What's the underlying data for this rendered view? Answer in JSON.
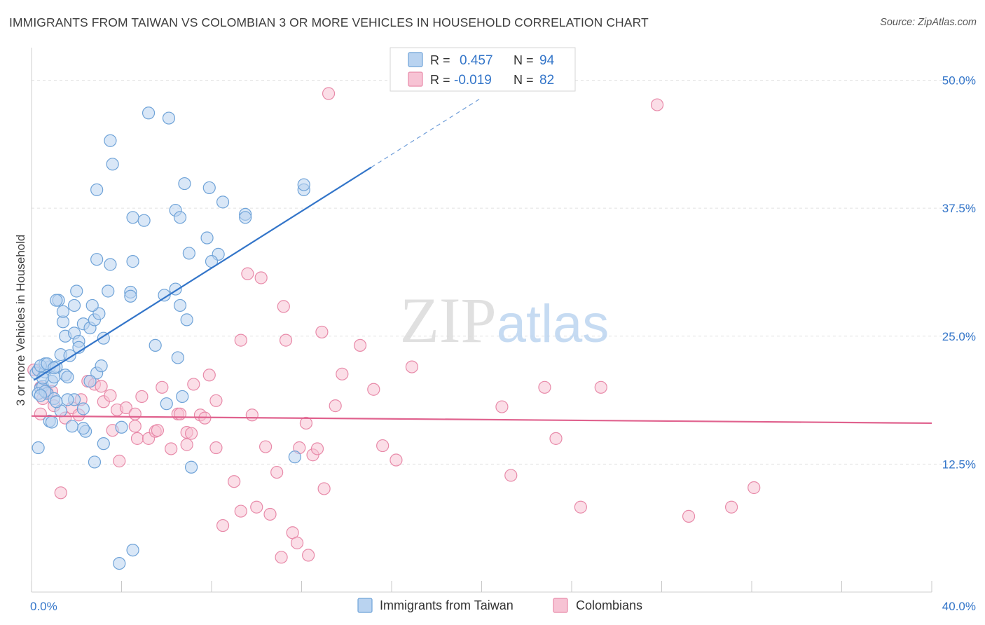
{
  "chart_data": {
    "type": "scatter",
    "title": "IMMIGRANTS FROM TAIWAN VS COLOMBIAN 3 OR MORE VEHICLES IN HOUSEHOLD CORRELATION CHART",
    "source": "Source: ZipAtlas.com",
    "ylabel": "3 or more Vehicles in Household",
    "xlabel": "",
    "xlim": [
      0,
      40
    ],
    "ylim": [
      0,
      52.5
    ],
    "x_tick_labels": [
      "0.0%",
      "40.0%"
    ],
    "y_ticks": [
      12.5,
      25.0,
      37.5,
      50.0
    ],
    "y_tick_labels": [
      "12.5%",
      "25.0%",
      "37.5%",
      "50.0%"
    ],
    "grid": true,
    "watermark": "ZIPatlas",
    "legend": {
      "position": "top-center",
      "rows": [
        {
          "r_label": "R =",
          "r_value": "0.457",
          "n_label": "N =",
          "n_value": "94"
        },
        {
          "r_label": "R =",
          "r_value": "-0.019",
          "n_label": "N =",
          "n_value": "82"
        }
      ]
    },
    "series": [
      {
        "name": "Immigrants from Taiwan",
        "color": "#6fa3d8",
        "fill": "#b9d3f0",
        "trend_color": "#3375c9",
        "trend": {
          "x0": 0.1,
          "y0": 20.7,
          "x1": 15.1,
          "y1": 41.5,
          "dash_to_x": 20.0
        },
        "points": [
          [
            0.2,
            21.4
          ],
          [
            0.3,
            21.7
          ],
          [
            0.4,
            19.9
          ],
          [
            0.5,
            20.1
          ],
          [
            0.6,
            21.5
          ],
          [
            0.7,
            19.4
          ],
          [
            0.8,
            16.7
          ],
          [
            0.9,
            20.6
          ],
          [
            0.8,
            22.0
          ],
          [
            0.6,
            22.3
          ],
          [
            0.3,
            19.4
          ],
          [
            0.4,
            22.1
          ],
          [
            0.5,
            20.9
          ],
          [
            0.7,
            22.3
          ],
          [
            1.0,
            21.0
          ],
          [
            1.1,
            22.0
          ],
          [
            1.2,
            28.5
          ],
          [
            1.3,
            23.2
          ],
          [
            1.4,
            26.4
          ],
          [
            1.5,
            25.0
          ],
          [
            1.4,
            27.4
          ],
          [
            1.7,
            23.1
          ],
          [
            1.9,
            25.3
          ],
          [
            2.1,
            24.5
          ],
          [
            2.3,
            26.2
          ],
          [
            2.6,
            25.8
          ],
          [
            2.8,
            26.6
          ],
          [
            3.0,
            27.2
          ],
          [
            3.2,
            24.8
          ],
          [
            3.5,
            32.0
          ],
          [
            4.4,
            29.3
          ],
          [
            4.5,
            32.3
          ],
          [
            2.9,
            32.5
          ],
          [
            2.0,
            29.4
          ],
          [
            2.7,
            28.0
          ],
          [
            1.9,
            28.0
          ],
          [
            3.4,
            29.4
          ],
          [
            1.1,
            28.5
          ],
          [
            4.4,
            28.9
          ],
          [
            5.5,
            24.1
          ],
          [
            5.9,
            29.0
          ],
          [
            6.4,
            29.6
          ],
          [
            6.6,
            28.0
          ],
          [
            6.9,
            26.6
          ],
          [
            6.5,
            22.9
          ],
          [
            6.7,
            19.1
          ],
          [
            6.0,
            18.4
          ],
          [
            4.0,
            16.1
          ],
          [
            3.2,
            14.5
          ],
          [
            2.8,
            12.7
          ],
          [
            2.4,
            15.7
          ],
          [
            2.3,
            16.0
          ],
          [
            1.9,
            18.8
          ],
          [
            1.6,
            18.8
          ],
          [
            1.3,
            17.7
          ],
          [
            0.3,
            14.1
          ],
          [
            2.3,
            17.9
          ],
          [
            2.9,
            21.4
          ],
          [
            3.1,
            22.1
          ],
          [
            2.6,
            20.6
          ],
          [
            3.5,
            44.1
          ],
          [
            3.6,
            41.8
          ],
          [
            2.9,
            39.3
          ],
          [
            5.2,
            46.8
          ],
          [
            6.1,
            46.3
          ],
          [
            6.8,
            39.9
          ],
          [
            7.9,
            39.5
          ],
          [
            6.4,
            37.3
          ],
          [
            6.6,
            36.6
          ],
          [
            8.5,
            38.1
          ],
          [
            9.5,
            36.9
          ],
          [
            9.5,
            36.6
          ],
          [
            4.5,
            36.6
          ],
          [
            5.0,
            36.3
          ],
          [
            7.0,
            33.1
          ],
          [
            7.8,
            34.6
          ],
          [
            8.3,
            33.0
          ],
          [
            8.0,
            32.3
          ],
          [
            12.1,
            39.3
          ],
          [
            12.1,
            39.8
          ],
          [
            3.9,
            2.8
          ],
          [
            4.5,
            4.1
          ],
          [
            7.1,
            12.2
          ],
          [
            11.7,
            13.2
          ],
          [
            0.9,
            16.6
          ],
          [
            1.0,
            18.9
          ],
          [
            1.8,
            16.2
          ],
          [
            1.5,
            21.2
          ],
          [
            0.6,
            19.6
          ],
          [
            1.1,
            18.6
          ],
          [
            1.6,
            21.0
          ],
          [
            0.4,
            19.2
          ],
          [
            1.0,
            21.9
          ],
          [
            2.1,
            23.9
          ]
        ]
      },
      {
        "name": "Colombians",
        "color": "#e88aa9",
        "fill": "#f7c3d4",
        "trend_color": "#e0628e",
        "trend": {
          "x0": 0.0,
          "y0": 17.2,
          "x1": 40.0,
          "y1": 16.5
        },
        "points": [
          [
            0.1,
            21.7
          ],
          [
            0.4,
            20.0
          ],
          [
            0.5,
            18.9
          ],
          [
            0.7,
            19.5
          ],
          [
            0.9,
            19.6
          ],
          [
            1.0,
            18.2
          ],
          [
            1.5,
            17.0
          ],
          [
            1.8,
            18.0
          ],
          [
            2.1,
            17.3
          ],
          [
            2.2,
            18.8
          ],
          [
            2.5,
            20.6
          ],
          [
            2.8,
            20.3
          ],
          [
            3.1,
            20.1
          ],
          [
            3.2,
            18.6
          ],
          [
            3.5,
            19.2
          ],
          [
            3.6,
            15.8
          ],
          [
            3.8,
            17.8
          ],
          [
            3.9,
            12.8
          ],
          [
            4.2,
            18.0
          ],
          [
            4.6,
            17.4
          ],
          [
            4.6,
            16.2
          ],
          [
            4.7,
            15.0
          ],
          [
            4.9,
            19.1
          ],
          [
            5.2,
            15.0
          ],
          [
            5.5,
            15.7
          ],
          [
            5.6,
            15.8
          ],
          [
            5.8,
            20.0
          ],
          [
            6.2,
            14.0
          ],
          [
            6.5,
            17.4
          ],
          [
            6.6,
            17.4
          ],
          [
            6.9,
            15.6
          ],
          [
            6.9,
            14.4
          ],
          [
            7.1,
            15.5
          ],
          [
            7.2,
            20.3
          ],
          [
            7.5,
            17.3
          ],
          [
            7.7,
            17.0
          ],
          [
            7.9,
            21.2
          ],
          [
            8.2,
            18.7
          ],
          [
            8.2,
            14.1
          ],
          [
            8.5,
            6.5
          ],
          [
            9.0,
            10.8
          ],
          [
            9.3,
            24.6
          ],
          [
            9.3,
            7.9
          ],
          [
            9.6,
            31.1
          ],
          [
            9.8,
            17.3
          ],
          [
            10.0,
            8.3
          ],
          [
            10.2,
            30.7
          ],
          [
            10.4,
            14.2
          ],
          [
            10.6,
            7.6
          ],
          [
            10.9,
            11.7
          ],
          [
            11.1,
            3.4
          ],
          [
            11.2,
            27.9
          ],
          [
            11.3,
            24.6
          ],
          [
            11.6,
            5.8
          ],
          [
            11.8,
            4.8
          ],
          [
            11.9,
            14.1
          ],
          [
            12.2,
            16.5
          ],
          [
            12.3,
            3.6
          ],
          [
            12.5,
            13.4
          ],
          [
            12.7,
            14.0
          ],
          [
            12.9,
            25.4
          ],
          [
            13.0,
            10.1
          ],
          [
            13.2,
            48.7
          ],
          [
            13.5,
            18.2
          ],
          [
            13.8,
            21.3
          ],
          [
            14.6,
            24.1
          ],
          [
            15.2,
            19.8
          ],
          [
            15.6,
            14.3
          ],
          [
            16.2,
            12.9
          ],
          [
            16.9,
            22.0
          ],
          [
            20.9,
            18.1
          ],
          [
            21.3,
            11.4
          ],
          [
            22.8,
            20.0
          ],
          [
            23.3,
            15.0
          ],
          [
            24.4,
            8.3
          ],
          [
            25.3,
            20.0
          ],
          [
            27.8,
            47.6
          ],
          [
            29.2,
            7.4
          ],
          [
            31.1,
            8.3
          ],
          [
            32.1,
            10.2
          ],
          [
            0.4,
            17.4
          ],
          [
            1.3,
            9.7
          ]
        ]
      }
    ]
  }
}
